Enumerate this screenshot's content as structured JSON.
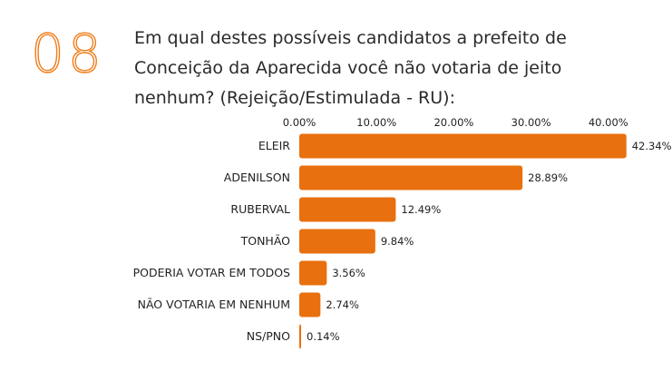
{
  "question": {
    "number": "08",
    "text": "Em qual destes possíveis candidatos a prefeito de Conceição da Aparecida você não votaria de jeito nenhum? (Rejeição/Estimulada - RU):"
  },
  "colors": {
    "bar": "#e8700f",
    "number": "#f07d19"
  },
  "chart_data": {
    "type": "bar",
    "orientation": "horizontal",
    "categories": [
      "ELEIR",
      "ADENILSON",
      "RUBERVAL",
      "TONHÃO",
      "PODERIA VOTAR EM TODOS",
      "NÃO VOTARIA EM NENHUM",
      "NS/PNO"
    ],
    "values": [
      42.34,
      28.89,
      12.49,
      9.84,
      3.56,
      2.74,
      0.14
    ],
    "value_labels": [
      "42.34%",
      "28.89%",
      "12.49%",
      "9.84%",
      "3.56%",
      "2.74%",
      "0.14%"
    ],
    "x_ticks": [
      0,
      10,
      20,
      30,
      40
    ],
    "x_tick_labels": [
      "0.00%",
      "10.00%",
      "20.00%",
      "30.00%",
      "40.00%"
    ],
    "xlim": [
      0,
      42.34
    ],
    "axis_position": "top",
    "grid": false,
    "legend": "none"
  }
}
